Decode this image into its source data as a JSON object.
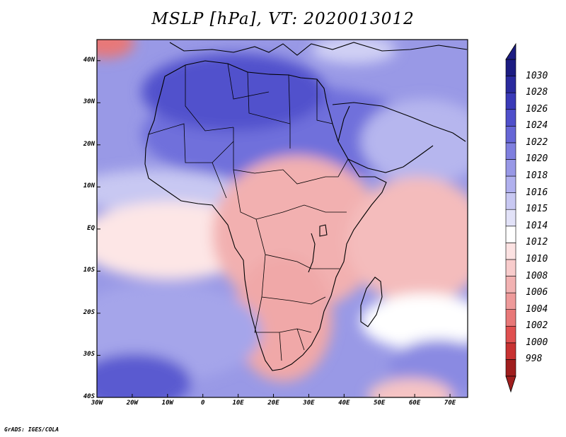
{
  "title": "MSLP [hPa], VT: 2020013012",
  "credit": "GrADS: IGES/COLA",
  "map": {
    "lon_range": [
      -30,
      75
    ],
    "lat_range": [
      -40,
      45
    ],
    "lat_ticks": [
      {
        "value": 40,
        "label": "40N"
      },
      {
        "value": 30,
        "label": "30N"
      },
      {
        "value": 20,
        "label": "20N"
      },
      {
        "value": 10,
        "label": "10N"
      },
      {
        "value": 0,
        "label": "EQ"
      },
      {
        "value": -10,
        "label": "10S"
      },
      {
        "value": -20,
        "label": "20S"
      },
      {
        "value": -30,
        "label": "30S"
      },
      {
        "value": -40,
        "label": "40S"
      }
    ],
    "lon_ticks": [
      {
        "value": -30,
        "label": "30W"
      },
      {
        "value": -20,
        "label": "20W"
      },
      {
        "value": -10,
        "label": "10W"
      },
      {
        "value": 0,
        "label": "0"
      },
      {
        "value": 10,
        "label": "10E"
      },
      {
        "value": 20,
        "label": "20E"
      },
      {
        "value": 30,
        "label": "30E"
      },
      {
        "value": 40,
        "label": "40E"
      },
      {
        "value": 50,
        "label": "50E"
      },
      {
        "value": 60,
        "label": "60E"
      },
      {
        "value": 70,
        "label": "70E"
      }
    ]
  },
  "colorbar": {
    "levels": [
      "998",
      "1000",
      "1002",
      "1004",
      "1006",
      "1008",
      "1010",
      "1012",
      "1014",
      "1015",
      "1016",
      "1018",
      "1020",
      "1022",
      "1024",
      "1026",
      "1028",
      "1030"
    ],
    "colors": [
      "#a01e1e",
      "#c83232",
      "#e05050",
      "#e87878",
      "#ee9a9a",
      "#f2b2b2",
      "#f8cccc",
      "#fce2e2",
      "#ffffff",
      "#e2e2f8",
      "#c8c8f2",
      "#b0b0ee",
      "#9898e6",
      "#7f7fdf",
      "#6666d6",
      "#4f4fcb",
      "#3a3ab8",
      "#2a2a9e",
      "#1c1c82"
    ]
  },
  "icons": {
    "colorbar_top_arrow": "triangle-up-icon",
    "colorbar_bottom_arrow": "triangle-down-icon"
  }
}
